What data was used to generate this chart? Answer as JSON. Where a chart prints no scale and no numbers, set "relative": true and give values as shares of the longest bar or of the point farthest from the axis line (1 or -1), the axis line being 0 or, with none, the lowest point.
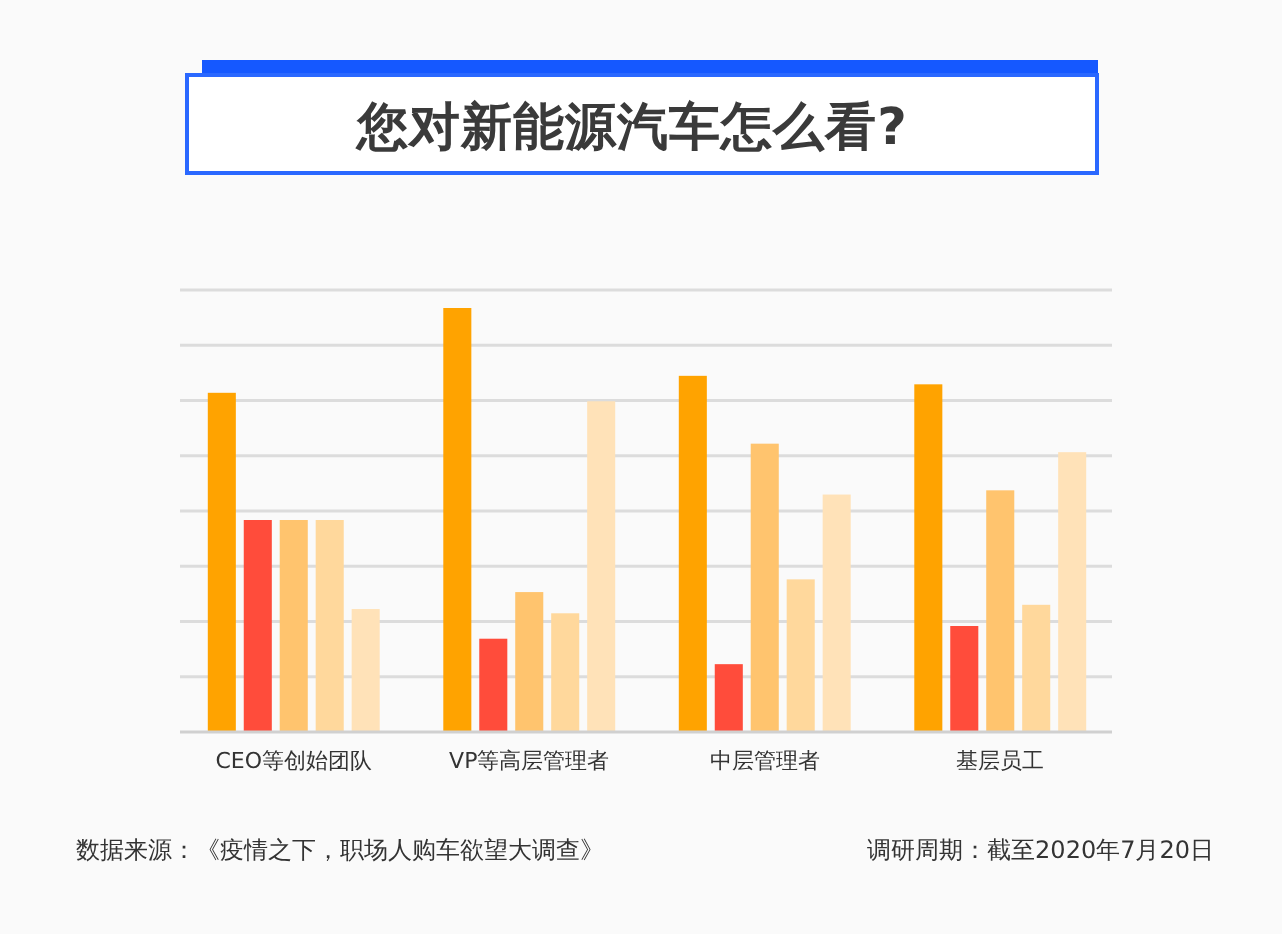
{
  "chart_data": {
    "type": "bar",
    "title": "您对新能源汽车怎么看?",
    "categories": [
      "CEO等创始团队",
      "VP等高层管理者",
      "中层管理者",
      "基层员工"
    ],
    "relative": true,
    "series": [
      {
        "color": "#ffa300",
        "values": [
          0.8,
          1,
          0.84,
          0.82
        ]
      },
      {
        "color": "#ff4c3b",
        "values": [
          0.5,
          0.22,
          0.16,
          0.25
        ]
      },
      {
        "color": "#ffc46e",
        "values": [
          0.5,
          0.33,
          0.68,
          0.57
        ]
      },
      {
        "color": "#ffd89c",
        "values": [
          0.5,
          0.28,
          0.36,
          0.3
        ]
      },
      {
        "color": "#ffe2b8",
        "values": [
          0.29,
          0.78,
          0.56,
          0.66
        ]
      }
    ],
    "grid": "y",
    "annotations": [
      "数据来源：《疫情之下，职场人购车欲望大调查》",
      "调研周期：截至2020年7月20日"
    ]
  }
}
